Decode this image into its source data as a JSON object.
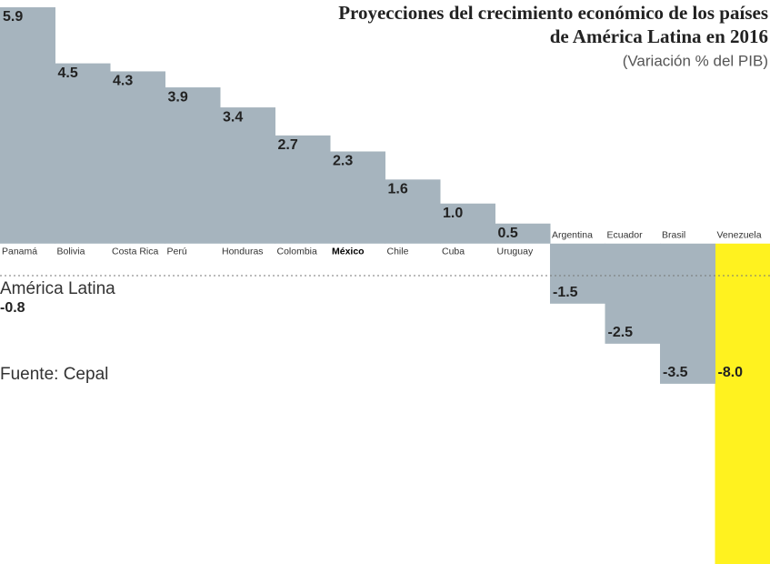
{
  "chart_data": {
    "type": "bar",
    "title": [
      "Proyecciones del crecimiento económico de los países",
      "de América Latina en 2016"
    ],
    "subtitle": "(Variación % del PIB)",
    "categories": [
      "Panamá",
      "Bolivia",
      "Costa Rica",
      "Perú",
      "Honduras",
      "Colombia",
      "México",
      "Chile",
      "Cuba",
      "Uruguay",
      "Argentina",
      "Ecuador",
      "Brasil",
      "Venezuela"
    ],
    "values": [
      5.9,
      4.5,
      4.3,
      3.9,
      3.4,
      2.7,
      2.3,
      1.6,
      1.0,
      0.5,
      -1.5,
      -2.5,
      -3.5,
      -8.0
    ],
    "value_labels": [
      "5.9",
      "4.5",
      "4.3",
      "3.9",
      "3.4",
      "2.7",
      "2.3",
      "1.6",
      "1.0",
      "0.5",
      "-1.5",
      "-2.5",
      "-3.5",
      "-8.0"
    ],
    "colors": [
      "#a6b4be",
      "#a6b4be",
      "#a6b4be",
      "#a6b4be",
      "#a6b4be",
      "#a6b4be",
      "#a6b4be",
      "#a6b4be",
      "#a6b4be",
      "#a6b4be",
      "#a6b4be",
      "#a6b4be",
      "#a6b4be",
      "#fff21f"
    ],
    "highlight_index": 6,
    "ylim": [
      -8.0,
      5.9
    ],
    "reference": {
      "label": "América Latina",
      "value": -0.8,
      "value_label": "-0.8"
    },
    "source": "Fuente: Cepal"
  }
}
